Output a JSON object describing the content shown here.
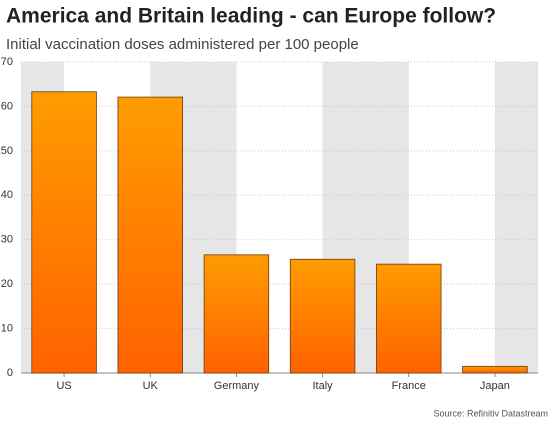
{
  "chart_data": {
    "type": "bar",
    "title": "America and Britain leading - can Europe follow?",
    "subtitle": "Initial vaccination doses administered per 100 people",
    "source": "Source: Refinitiv Datastream",
    "categories": [
      "US",
      "UK",
      "Germany",
      "Italy",
      "France",
      "Japan"
    ],
    "values": [
      63.3,
      62.1,
      26.6,
      25.6,
      24.5,
      1.5
    ],
    "color": "#ff8000",
    "ylim": [
      0,
      70
    ],
    "yticks": [
      0,
      10,
      20,
      30,
      40,
      50,
      60,
      70
    ],
    "grid": true
  }
}
